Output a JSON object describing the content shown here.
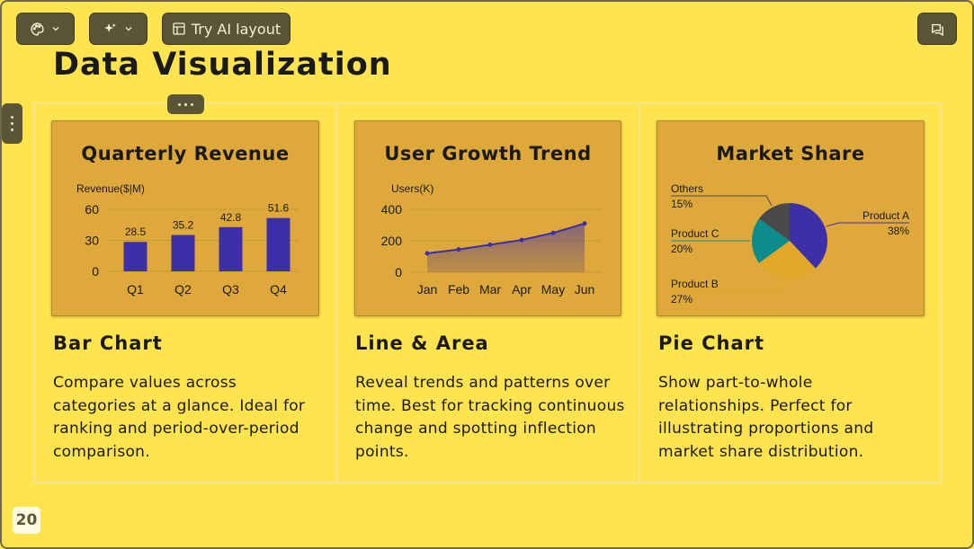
{
  "toolbar": {
    "theme_icon": "palette-icon",
    "ai_icon": "sparkles-icon",
    "try_ai_label": "Try AI layout",
    "comment_icon": "comment-icon"
  },
  "page": {
    "title": "Data Visualization",
    "page_number": "20"
  },
  "sections": [
    {
      "heading": "Bar Chart",
      "description": "Compare values across categories at a glance. Ideal for ranking and period-over-period comparison."
    },
    {
      "heading": "Line & Area",
      "description": "Reveal trends and patterns over time. Best for tracking continuous change and spotting inflection points."
    },
    {
      "heading": "Pie Chart",
      "description": "Show part-to-whole relationships. Perfect for illustrating proportions and market share distribution."
    }
  ],
  "chart_data": [
    {
      "type": "bar",
      "title": "Quarterly Revenue",
      "ylabel": "Revenue($|M)",
      "categories": [
        "Q1",
        "Q2",
        "Q3",
        "Q4"
      ],
      "values": [
        28.5,
        35.2,
        42.8,
        51.6
      ],
      "ylim": [
        0,
        60
      ],
      "yticks": [
        0,
        30,
        60
      ],
      "color": "#3D2FA8",
      "grid": true
    },
    {
      "type": "area",
      "title": "User Growth Trend",
      "ylabel": "Users(K)",
      "categories": [
        "Jan",
        "Feb",
        "Mar",
        "Apr",
        "May",
        "Jun"
      ],
      "values": [
        120,
        145,
        175,
        205,
        250,
        310
      ],
      "ylim": [
        0,
        400
      ],
      "yticks": [
        0,
        200,
        400
      ],
      "color": "#3D2FA8",
      "grid": true
    },
    {
      "type": "pie",
      "title": "Market Share",
      "slices": [
        {
          "label": "Product A",
          "value": 38,
          "pct": "38%",
          "color": "#3D2FA8"
        },
        {
          "label": "Product B",
          "value": 27,
          "pct": "27%",
          "color": "#E2A82A"
        },
        {
          "label": "Product C",
          "value": 20,
          "pct": "20%",
          "color": "#0E8C8C"
        },
        {
          "label": "Others",
          "value": 15,
          "pct": "15%",
          "color": "#4A4A4A"
        }
      ]
    }
  ]
}
